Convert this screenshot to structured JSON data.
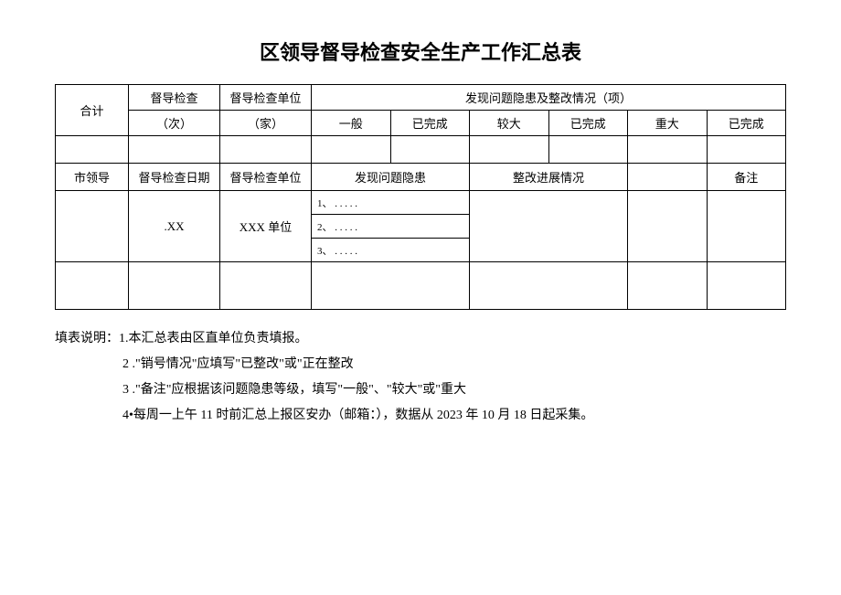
{
  "title": "区领导督导检查安全生产工作汇总表",
  "header": {
    "total": "合计",
    "check_times_l1": "督导检查",
    "check_times_l2": "（次）",
    "check_unit_l1": "督导检查单位",
    "check_unit_l2": "（家）",
    "problems_header": "发现问题隐患及整改情况（项）",
    "sub_general": "一般",
    "sub_done1": "已完成",
    "sub_major": "较大",
    "sub_done2": "已完成",
    "sub_severe": "重大",
    "sub_done3": "已完成"
  },
  "header2": {
    "leader": "市领导",
    "check_date": "督导检查日期",
    "check_unit": "督导检查单位",
    "problems": "发现问题隐患",
    "progress": "整改进展情况",
    "remark": "备注"
  },
  "data": {
    "date": ".XX",
    "unit": "XXX 单位",
    "item1": "1、 . . . . .",
    "item2": "2、 . . . . .",
    "item3": "3、 . . . . ."
  },
  "notes": {
    "label": "填表说明：",
    "n1": "1.本汇总表由区直单位负责填报。",
    "n2": "2 .\"销号情况\"应填写\"已整改\"或\"正在整改",
    "n3": "3 .\"备注\"应根据该问题隐患等级，填写\"一般\"、\"较大\"或\"重大",
    "n4": "4•每周一上午 11 时前汇总上报区安办（邮箱：），数据从 2023 年 10 月 18 日起采集。"
  }
}
